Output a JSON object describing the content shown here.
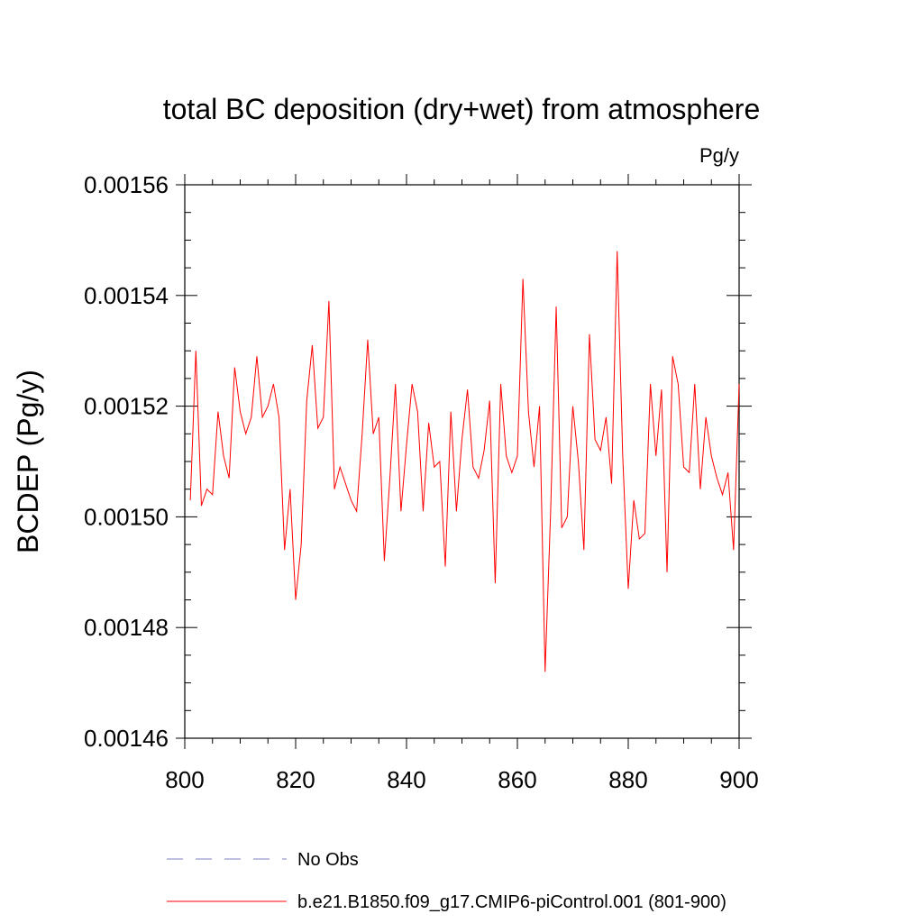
{
  "chart_data": {
    "type": "line",
    "title": "total BC deposition (dry+wet) from atmosphere",
    "units_label": "Pg/y",
    "xlabel": "",
    "ylabel": "BCDEP  (Pg/y)",
    "xlim": [
      800,
      900
    ],
    "ylim": [
      0.00146,
      0.00156
    ],
    "x_ticks": [
      800,
      820,
      840,
      860,
      880,
      900
    ],
    "x_tick_labels": [
      "800",
      "820",
      "840",
      "860",
      "880",
      "900"
    ],
    "y_ticks": [
      0.00146,
      0.00148,
      0.0015,
      0.00152,
      0.00154,
      0.00156
    ],
    "y_tick_labels": [
      "0.00146",
      "0.00148",
      "0.00150",
      "0.00152",
      "0.00154",
      "0.00156"
    ],
    "grid": false,
    "legend_position": "bottom",
    "legend": [
      {
        "label": "No Obs",
        "style": "dashed",
        "color": "#8080c0"
      },
      {
        "label": "b.e21.B1850.f09_g17.CMIP6-piControl.001 (801-900)",
        "style": "solid",
        "color": "#ff0000"
      }
    ],
    "series": [
      {
        "name": "b.e21.B1850.f09_g17.CMIP6-piControl.001 (801-900)",
        "color": "#ff0000",
        "x": [
          801,
          802,
          803,
          804,
          805,
          806,
          807,
          808,
          809,
          810,
          811,
          812,
          813,
          814,
          815,
          816,
          817,
          818,
          819,
          820,
          821,
          822,
          823,
          824,
          825,
          826,
          827,
          828,
          829,
          830,
          831,
          832,
          833,
          834,
          835,
          836,
          837,
          838,
          839,
          840,
          841,
          842,
          843,
          844,
          845,
          846,
          847,
          848,
          849,
          850,
          851,
          852,
          853,
          854,
          855,
          856,
          857,
          858,
          859,
          860,
          861,
          862,
          863,
          864,
          865,
          866,
          867,
          868,
          869,
          870,
          871,
          872,
          873,
          874,
          875,
          876,
          877,
          878,
          879,
          880,
          881,
          882,
          883,
          884,
          885,
          886,
          887,
          888,
          889,
          890,
          891,
          892,
          893,
          894,
          895,
          896,
          897,
          898,
          899,
          900
        ],
        "values": [
          0.001503,
          0.00153,
          0.001502,
          0.001505,
          0.001504,
          0.001519,
          0.001511,
          0.001507,
          0.001527,
          0.001519,
          0.001515,
          0.001518,
          0.001529,
          0.001518,
          0.00152,
          0.001524,
          0.001518,
          0.001494,
          0.001505,
          0.001485,
          0.001495,
          0.001521,
          0.001531,
          0.001516,
          0.001518,
          0.001539,
          0.001505,
          0.001509,
          0.001506,
          0.001503,
          0.001501,
          0.001515,
          0.001532,
          0.001515,
          0.001518,
          0.001492,
          0.001507,
          0.001524,
          0.001501,
          0.001513,
          0.001524,
          0.001519,
          0.001501,
          0.001517,
          0.001509,
          0.00151,
          0.001491,
          0.001519,
          0.001501,
          0.001514,
          0.001523,
          0.001509,
          0.001507,
          0.001512,
          0.001521,
          0.001488,
          0.001524,
          0.001511,
          0.001508,
          0.001511,
          0.001543,
          0.001519,
          0.001509,
          0.00152,
          0.001472,
          0.001501,
          0.001538,
          0.001498,
          0.0015,
          0.00152,
          0.00151,
          0.001494,
          0.001533,
          0.001514,
          0.001512,
          0.001518,
          0.001506,
          0.001548,
          0.001511,
          0.001487,
          0.001503,
          0.001496,
          0.001497,
          0.001524,
          0.001511,
          0.001523,
          0.00149,
          0.001529,
          0.001524,
          0.001509,
          0.001508,
          0.001524,
          0.001505,
          0.001518,
          0.001511,
          0.001507,
          0.001504,
          0.001508,
          0.001494,
          0.001524
        ]
      }
    ]
  }
}
